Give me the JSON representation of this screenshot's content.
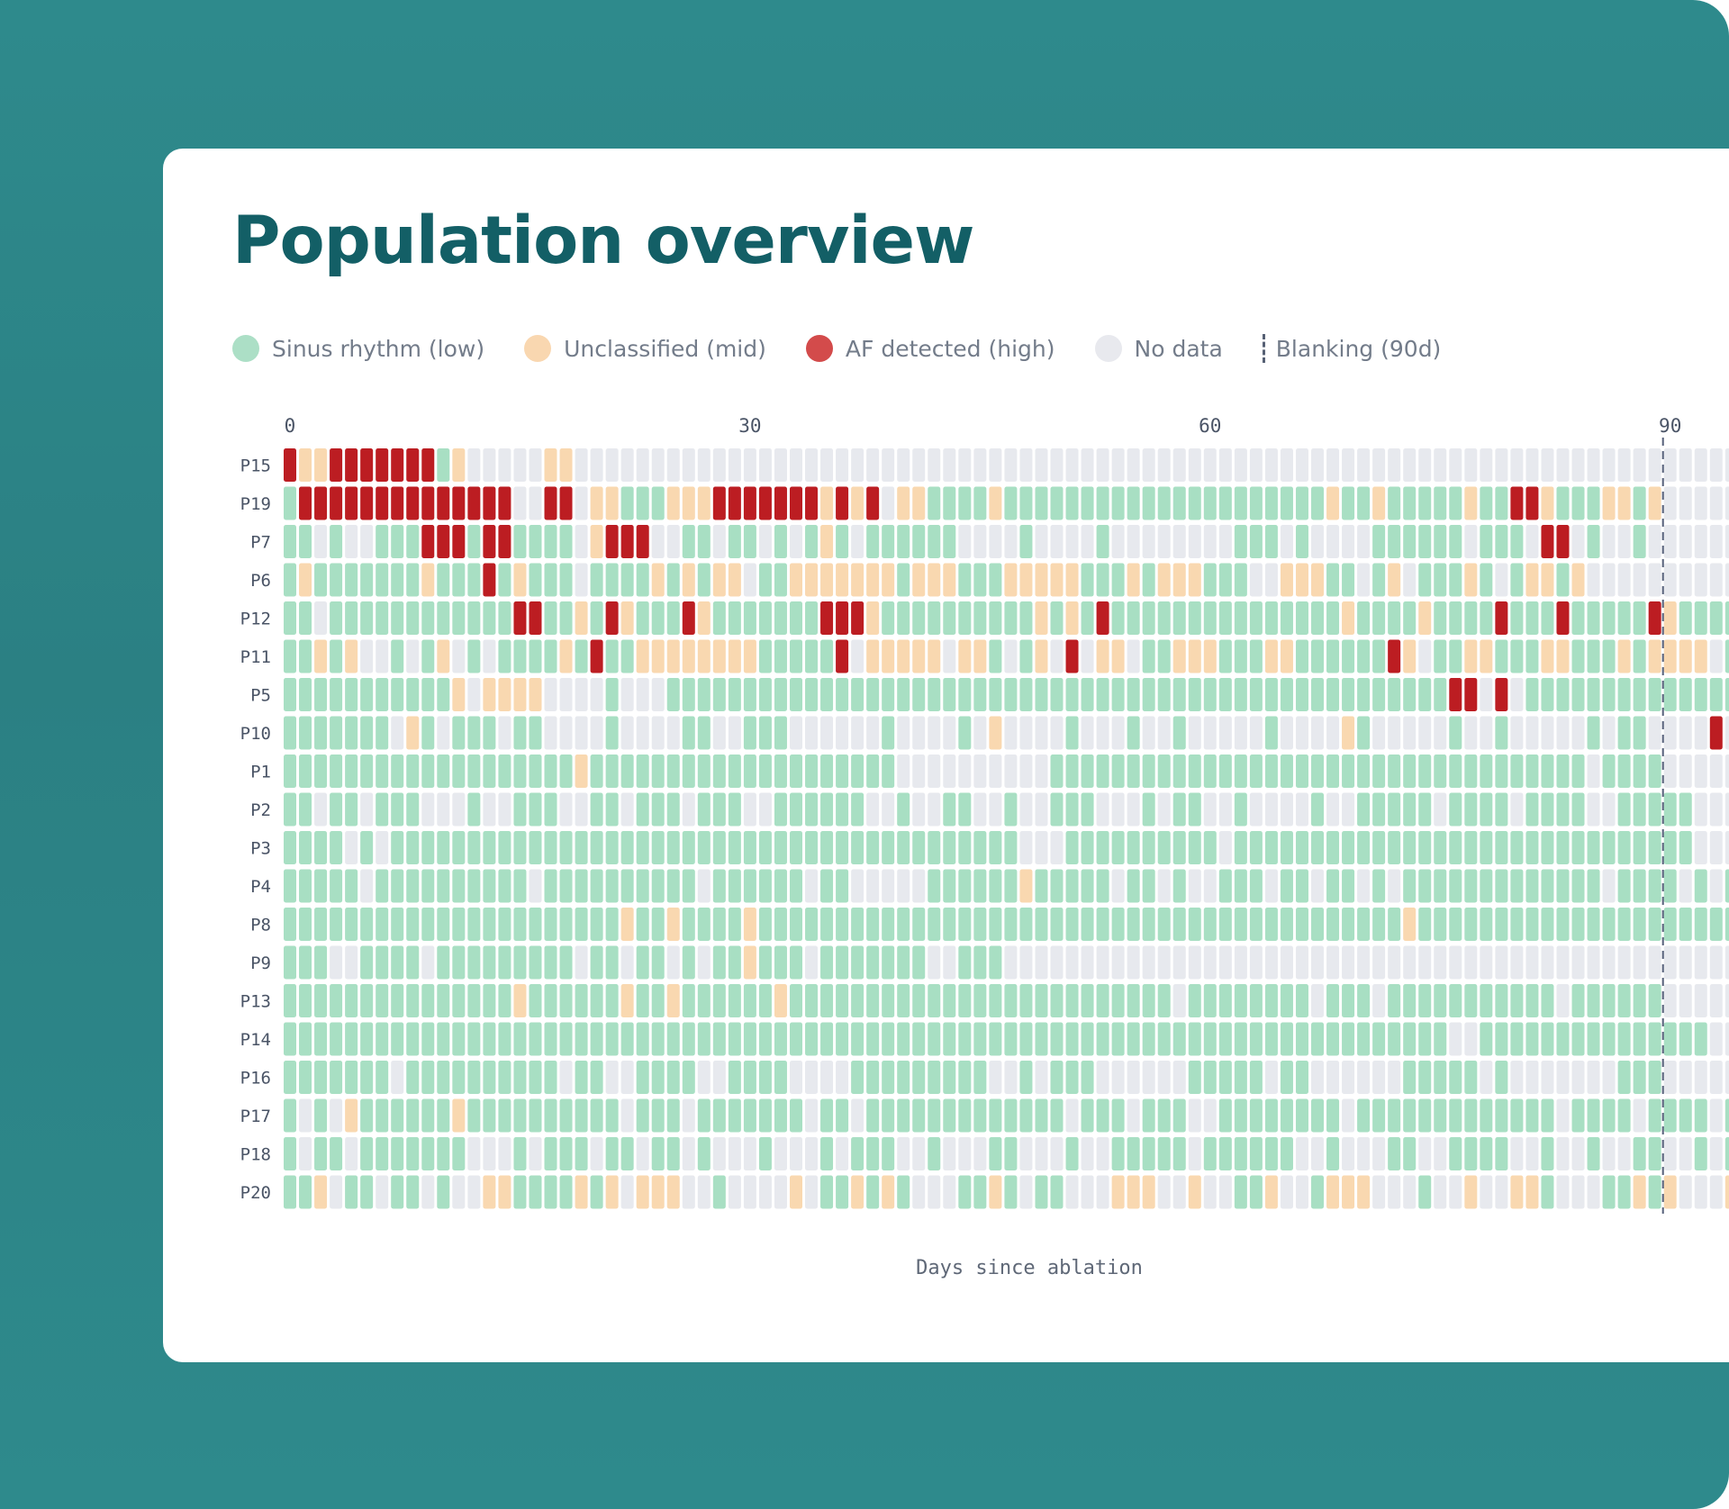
{
  "page": {
    "title": "Population overview"
  },
  "legend": {
    "items": [
      {
        "key": "sinus",
        "label": "Sinus rhythm (low)",
        "color": "#acdfc6"
      },
      {
        "key": "unclassified",
        "label": "Unclassified (mid)",
        "color": "#f9d7b0"
      },
      {
        "key": "af",
        "label": "AF detected (high)",
        "color": "#d34b4b"
      },
      {
        "key": "nodata",
        "label": "No data",
        "color": "#e8e9ee"
      }
    ],
    "blanking_label": "Blanking (90d)"
  },
  "chart_data": {
    "type": "heatmap",
    "title": "Population overview",
    "xlabel": "Days since ablation",
    "ylabel": "",
    "x_ticks": [
      0,
      30,
      60,
      90
    ],
    "x_range": [
      0,
      90
    ],
    "blanking_day": 90,
    "cell_colors": {
      "S": "#a8dfc3",
      "U": "#f9d8b0",
      "A": "#bc1d22",
      "N": "#e7e9ee"
    },
    "encoding": "S=Sinus rhythm (low), U=Unclassified (mid), A=AF detected (high), N=No data; one character per day starting at day 0",
    "rows": [
      {
        "patient": "P15",
        "days": "AUUAAAAAAASUNNNNNUUNNNNNNNNNNNNNNNNNNNNNNNNNNNNNNNNNNNNNNNNNNNNNNNNNNNNNNNNNNNNNNNNNNNNNNNNNNN"
      },
      {
        "patient": "P19",
        "days": "SAAAAAAAAAAAAAANNAANUUSSSUUUAAAAAAAUAUANUUSSSSUSSSSSSSSSSSSSSSSSSSSSUSSUSSSSSUSSAAUSSSUUSUN"
      },
      {
        "patient": "P7",
        "days": "SSNSNNSSSAAASAASSSSNUAAANNSSNSSNSNSUSNSSSSSSNNNNSNNNNSNNNNNNNNSSSNSNNNNSSSSSSNSSSNAANSNNSNNN"
      },
      {
        "patient": "P6",
        "days": "SUSSSSSSSUSSSASUSSSNSSSSUSUSUUNSSUUUUUUUSUUUSSSUUUUUSSSUSUUUSSSNNUUUSSNSUNSSSUSNSUUSUN"
      },
      {
        "patient": "P12",
        "days": "SSNSSSSSSSSSSSSAASSUSAUSSSAUSSSSSSSAAAUSSSSSSSSSSUSUSASSSSSSSSSSSSSSSUSSSSUSSSSASSSASSSSSAUSSSSS"
      },
      {
        "patient": "P11",
        "days": "SSUSUNNSNSUNSNSSSSUSASSUUUUUUUUSSSSSANUUUUUNUUSNSUNANUUNSSUUUSSSUUSSSSSSAUNSSUUSSSUUSSSUSUUUUNS"
      },
      {
        "patient": "P5",
        "days": "SSSSSSSSSSSUNUUUUNNNNSNNNSSSSSSSSSSSSSSSSSSSSSSSSSSSSSSSSSSSSSSSSSSSSSSSSSSSAANANSSSSSSSSSSSSSSSSSASSSS"
      },
      {
        "patient": "P10",
        "days": "SSSSSSSNUSNSSSNSSNNNNSNNNNSSNNSSSNNNNNNSNNNNSNUNNNNSNNNSNNSNNNNNSNNNNUSNNNNNSNNSNNNNNSNSSNNNNANSNNN"
      },
      {
        "patient": "P1",
        "days": "SSSSSSSSSSSSSSSSSSSUSSSSSSSSSSSSSSSSSSSSNNNNNNNNNNSSSSSSSSSSSSSSSSSSSSSSSSSSSSSSSSSSSNSSSSN"
      },
      {
        "patient": "P2",
        "days": "SSNSSNSSSNNNSNNSSSNNSSNSSSNSSSNNSSSSSSNNSNNSSNNSNNSSSNNNSNSSNNSNNNNSNNSSSSSNSSSSNSSSSNNSSSSS"
      },
      {
        "patient": "P3",
        "days": "SSSSNSNSSSSSSSSSSSSSSSSSSSSSSSSSSSSSSSSSSSSSSSSSNNNSSSSSSSSSSNSSSSSSSSSSSSSSSSSSSSSSSSSSSSSS"
      },
      {
        "patient": "P4",
        "days": "SSSSSNSSSSSSSSSSNSSSSSSSSSSNSSSSSSNSSNNNNNSSSSSSUSSSSSNSSNSNNSSSNSSNSSNSNSSSSSSSSSSSSSNSSSSNSNS"
      },
      {
        "patient": "P8",
        "days": "SSSSSSSSSSSSSSSSSSSSSSUSSUSSSSUSSSSSSSSSSSSSSSSSSSSSSSSSSSSSSSSSSSSSSSSSSUSSSSSSSSSSSSSSSSSSSSSU"
      },
      {
        "patient": "P9",
        "days": "SSSNNSSSSNSSSSSSSSSNSSNSSNSNSSUSSSNSSSSSSSNNSSSNNNNNNNNNNNNNNNNNNNNNNNNNNNNNNNNNNNNNNNNNNNNNNNNNNN"
      },
      {
        "patient": "P13",
        "days": "SSSSSSSSSSSSSSSUSSSSSSUSSUSSSSSSUSSSSSSSSSSSSSSSSSSSSSSSSSNSSSSSSSSNSSSNSSSSSSSSSSSNSSSSSSNNNNNNNN"
      },
      {
        "patient": "P14",
        "days": "SSSSSSSSSSSSSSSSSSSSSSSSSSSSSSSSSSSSSSSSSSSSSSSSSSSSSSSSSSSSSSSSSSSSSSSSSSSSNNSSSSSSSSSSSSSSS"
      },
      {
        "patient": "P16",
        "days": "SSSSSSSNSSSSSSSSSSNSSNNSSSSNNSSSSNNNNSSSSSSSSSNNSNSSSNNNNNNSSSSSNSSNNNNNNSSSSSNSNNNNNNNSSSNN"
      },
      {
        "patient": "P17",
        "days": "SNSNUSSSSSSUSSSSSSSSSSNSSSNSSSSSSSNSSNSSSSSSSSSSSSSNSSSNSSSNNSSSSSSSSNSSSSSSSSSSSSSNSSSSNSSSSNSS"
      },
      {
        "patient": "P18",
        "days": "SNSSNSSSSSSSNNNSNSSSNSSNSSNSNNNSNNNSNSSSNNSNNNSSNNNSNNSSSSSNSSSSSSNNSNNNSSNNSSSSNNSNNSNNSSNNSNS"
      },
      {
        "patient": "P20",
        "days": "SSUNSSNSSNSNNUUSSSSUSUNUUUNNSNNNNUNSSUSUSNNNSSUSNSSNNNUUUNNUNNSSUNNSUUUNNNSNNUNNUUSNNNSSUSUNNNUNN"
      }
    ]
  }
}
